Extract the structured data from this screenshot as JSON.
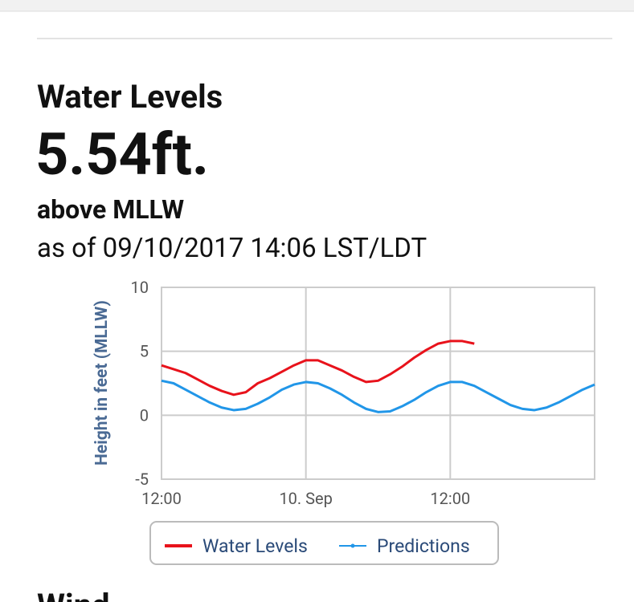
{
  "header": {
    "title": "Water Levels",
    "value": "5.54ft.",
    "datum": "above MLLW",
    "as_of": "as of 09/10/2017 14:06 LST/LDT"
  },
  "chart_data": {
    "type": "line",
    "ylabel": "Height in feet (MLLW)",
    "xlim": [
      0,
      36
    ],
    "xticks": [
      {
        "value": 0,
        "label": "12:00"
      },
      {
        "value": 12,
        "label": "10. Sep"
      },
      {
        "value": 24,
        "label": "12:00"
      }
    ],
    "ylim": [
      -5,
      10
    ],
    "yticks": [
      -5,
      0,
      5,
      10
    ],
    "grid": true,
    "series": [
      {
        "name": "Water Levels",
        "color": "#e8121b",
        "x": [
          0,
          1,
          2,
          3,
          4,
          5,
          6,
          7,
          8,
          9,
          10,
          11,
          12,
          13,
          14,
          15,
          16,
          17,
          18,
          19,
          20,
          21,
          22,
          23,
          24,
          25,
          26
        ],
        "values": [
          3.9,
          3.6,
          3.3,
          2.8,
          2.3,
          1.9,
          1.6,
          1.8,
          2.5,
          2.9,
          3.4,
          3.9,
          4.3,
          4.3,
          3.9,
          3.5,
          3.0,
          2.6,
          2.7,
          3.2,
          3.8,
          4.5,
          5.1,
          5.6,
          5.8,
          5.8,
          5.6
        ]
      },
      {
        "name": "Predictions",
        "color": "#2196e8",
        "x": [
          0,
          1,
          2,
          3,
          4,
          5,
          6,
          7,
          8,
          9,
          10,
          11,
          12,
          13,
          14,
          15,
          16,
          17,
          18,
          19,
          20,
          21,
          22,
          23,
          24,
          25,
          26,
          27,
          28,
          29,
          30,
          31,
          32,
          33,
          34,
          35,
          36
        ],
        "values": [
          2.7,
          2.5,
          2.0,
          1.5,
          1.0,
          0.6,
          0.4,
          0.5,
          0.9,
          1.4,
          2.0,
          2.4,
          2.6,
          2.5,
          2.1,
          1.6,
          1.0,
          0.5,
          0.25,
          0.3,
          0.7,
          1.2,
          1.8,
          2.3,
          2.6,
          2.6,
          2.3,
          1.8,
          1.3,
          0.8,
          0.5,
          0.4,
          0.6,
          1.0,
          1.5,
          2.0,
          2.4
        ]
      }
    ]
  },
  "next_section": {
    "title": "Wind"
  }
}
